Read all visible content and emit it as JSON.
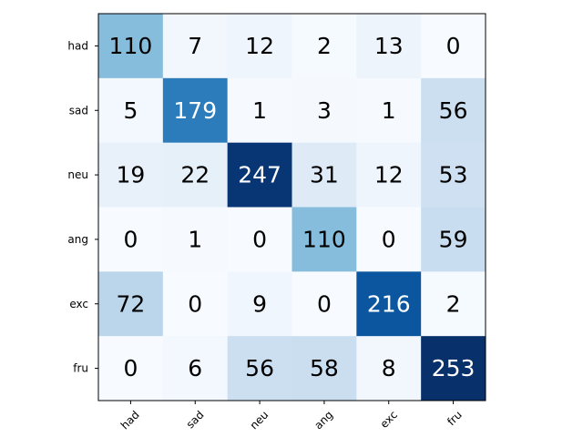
{
  "chart_data": {
    "type": "heatmap",
    "colormap": "Blues",
    "row_labels": [
      "had",
      "sad",
      "neu",
      "ang",
      "exc",
      "fru"
    ],
    "col_labels": [
      "had",
      "sad",
      "neu",
      "ang",
      "exc",
      "fru"
    ],
    "values": [
      [
        110,
        7,
        12,
        2,
        13,
        0
      ],
      [
        5,
        179,
        1,
        3,
        1,
        56
      ],
      [
        19,
        22,
        247,
        31,
        12,
        53
      ],
      [
        0,
        1,
        0,
        110,
        0,
        59
      ],
      [
        72,
        0,
        9,
        0,
        216,
        2
      ],
      [
        0,
        6,
        56,
        58,
        8,
        253
      ]
    ],
    "vmin": 0,
    "vmax": 253,
    "x_tick_rotation_deg": 45,
    "colorbar": false,
    "grid": false,
    "colors": {
      "low": "#f7fbff",
      "high": "#08306b",
      "text_light": "#ffffff",
      "text_dark": "#000000"
    }
  }
}
